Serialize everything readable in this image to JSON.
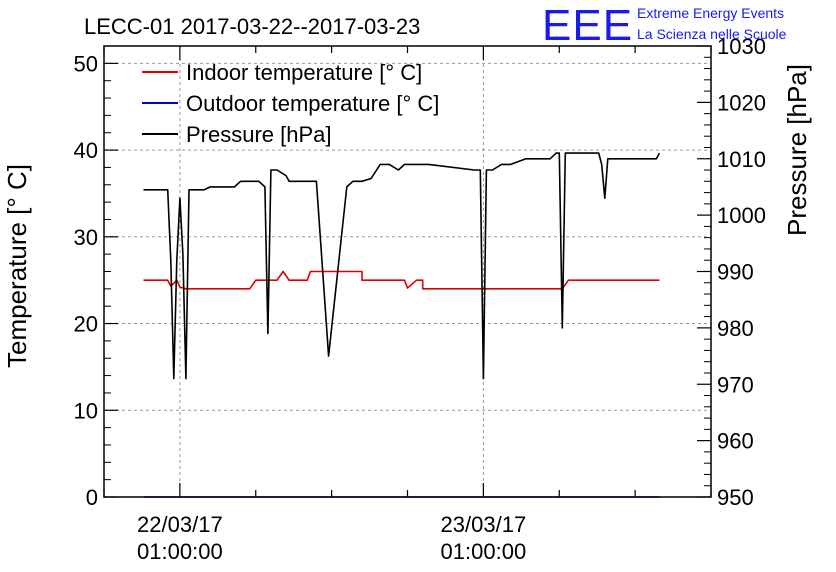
{
  "chart_data": {
    "type": "line",
    "title": "LECC-01 2017-03-22--2017-03-23",
    "ylabel": "Temperature [° C]",
    "y2label": "Pressure [hPa]",
    "xlabel": "",
    "ylim": [
      0,
      52
    ],
    "y2lim": [
      950,
      1030
    ],
    "yticks": [
      0,
      10,
      20,
      30,
      40,
      50
    ],
    "y2ticks": [
      950,
      960,
      970,
      980,
      990,
      1000,
      1010,
      1020,
      1030
    ],
    "xlim": [
      -0.25,
      1.75
    ],
    "x_major_ticks": [
      {
        "x": 0,
        "label_line1": "22/03/17",
        "label_line2": "01:00:00"
      },
      {
        "x": 1,
        "label_line1": "23/03/17",
        "label_line2": "01:00:00"
      }
    ],
    "grid": true,
    "legend_position": "top-left",
    "series": [
      {
        "name": "Indoor temperature [° C]",
        "axis": "left",
        "color": "#e00000",
        "x": [
          -0.12,
          -0.04,
          -0.03,
          -0.01,
          0.0,
          0.02,
          0.23,
          0.25,
          0.32,
          0.34,
          0.36,
          0.42,
          0.43,
          0.6,
          0.6,
          0.74,
          0.75,
          0.78,
          0.8,
          0.8,
          1.26,
          1.28,
          1.58
        ],
        "values": [
          25,
          25,
          24.3,
          25,
          24.2,
          24,
          24,
          25,
          25,
          26,
          25,
          25,
          26,
          26,
          25,
          25,
          24.1,
          25,
          25,
          24,
          24,
          25,
          25
        ]
      },
      {
        "name": "Outdoor temperature [° C]",
        "axis": "left",
        "color": "#0000e0",
        "x": [
          -0.12,
          1.58
        ],
        "values": [
          0,
          0
        ]
      },
      {
        "name": "Pressure [hPa]",
        "axis": "right",
        "color": "#000000",
        "x": [
          -0.12,
          -0.04,
          -0.03,
          -0.02,
          -0.01,
          0.0,
          0.01,
          0.02,
          0.03,
          0.08,
          0.1,
          0.18,
          0.2,
          0.26,
          0.28,
          0.29,
          0.3,
          0.32,
          0.35,
          0.36,
          0.38,
          0.45,
          0.49,
          0.55,
          0.57,
          0.6,
          0.63,
          0.66,
          0.69,
          0.72,
          0.74,
          0.76,
          0.78,
          0.8,
          0.82,
          0.97,
          0.99,
          1.0,
          1.01,
          1.03,
          1.06,
          1.07,
          1.09,
          1.14,
          1.22,
          1.24,
          1.25,
          1.26,
          1.27,
          1.29,
          1.31,
          1.38,
          1.39,
          1.4,
          1.41,
          1.42,
          1.44,
          1.57,
          1.58
        ],
        "values": [
          1004.5,
          1004.5,
          992,
          971,
          992,
          1003,
          993,
          971,
          1004.5,
          1004.5,
          1005,
          1005,
          1006,
          1006,
          1005,
          979,
          1008,
          1008,
          1007,
          1006,
          1006,
          1006,
          975,
          1005,
          1006,
          1006,
          1006.5,
          1009,
          1009,
          1008,
          1009,
          1009,
          1009,
          1009,
          1009,
          1008,
          1008,
          971,
          1008,
          1008,
          1009,
          1009,
          1009,
          1010,
          1010,
          1011,
          1011,
          980,
          1011,
          1011,
          1011,
          1011,
          1009,
          1003,
          1010,
          1010,
          1010,
          1010,
          1011
        ]
      }
    ]
  },
  "logo": {
    "mark": "EEE",
    "line1": "Extreme Energy Events",
    "line2": "La Scienza nelle Scuole"
  }
}
